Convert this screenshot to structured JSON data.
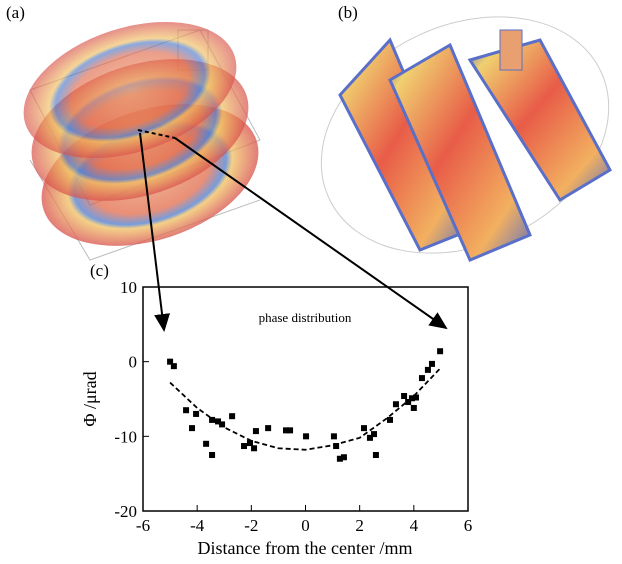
{
  "panels": {
    "a": "(a)",
    "b": "(b)"
  },
  "chart_data": {
    "type": "scatter",
    "panel_label": "(c)",
    "annotation": "phase distribution",
    "xlabel": "Distance from the center /mm",
    "ylabel": "Φ /μrad",
    "xlim": [
      -6,
      6
    ],
    "ylim": [
      -20,
      10
    ],
    "xticks": [
      -6,
      -4,
      -2,
      0,
      2,
      4,
      6
    ],
    "yticks": [
      -20,
      -10,
      0,
      10
    ],
    "series": [
      {
        "color": "#000000",
        "marker": "square",
        "x": [
          -5.0,
          -4.86,
          -4.41,
          -4.19,
          -4.04,
          -3.67,
          -3.45,
          -3.45,
          -3.23,
          -3.08,
          -2.71,
          -2.27,
          -2.05,
          -1.9,
          -1.83,
          -1.38,
          -0.72,
          -0.57,
          0.02,
          1.05,
          1.13,
          1.27,
          1.42,
          2.16,
          2.38,
          2.6,
          2.53,
          3.12,
          3.34,
          3.64,
          3.79,
          3.93,
          4.0,
          4.08,
          4.3,
          4.52,
          4.67,
          4.97
        ],
        "values": [
          0,
          -0.6,
          -6.5,
          -8.9,
          -7.0,
          -11.0,
          -12.5,
          -7.8,
          -8.0,
          -8.4,
          -7.3,
          -11.3,
          -10.9,
          -11.6,
          -9.3,
          -8.9,
          -9.2,
          -9.2,
          -10.0,
          -10.0,
          -11.3,
          -13.0,
          -12.8,
          -8.9,
          -10.2,
          -12.5,
          -9.7,
          -7.8,
          -5.7,
          -4.6,
          -5.4,
          -4.9,
          -6.2,
          -4.8,
          -2.2,
          -1.1,
          -0.3,
          1.4
        ]
      },
      {
        "color": "#000000",
        "marker": "dashed-line",
        "x": [
          -5,
          -4,
          -3,
          -2,
          -1,
          0,
          1,
          2,
          3,
          4,
          5
        ],
        "values": [
          -2.8,
          -6.2,
          -8.8,
          -10.6,
          -11.6,
          -11.8,
          -11.2,
          -10.2,
          -7.6,
          -4.6,
          -0.8
        ]
      }
    ]
  }
}
